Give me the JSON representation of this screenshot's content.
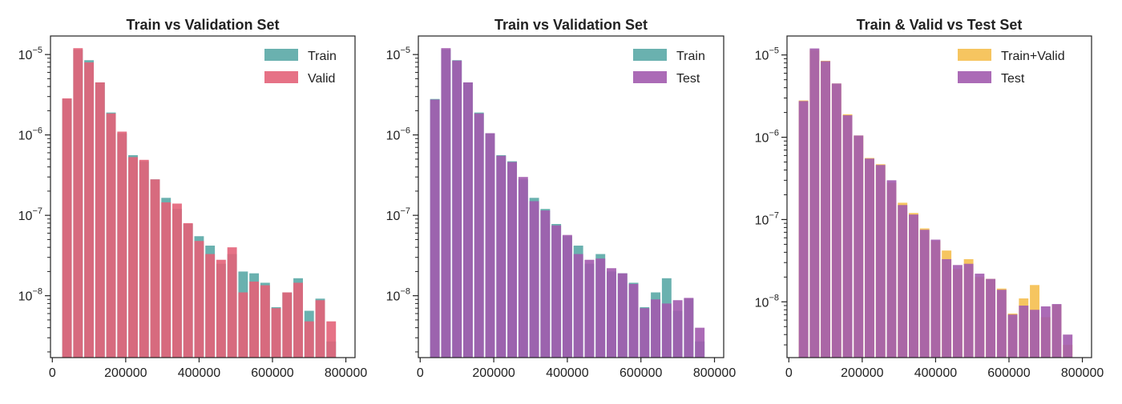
{
  "chart_data": [
    {
      "type": "bar",
      "title": "Train vs Validation Set",
      "yscale": "log",
      "xlim": [
        -5000,
        825000
      ],
      "ylim": [
        1.7e-09,
        1.7e-05
      ],
      "xticks": [
        0,
        200000,
        400000,
        600000,
        800000
      ],
      "xtick_labels": [
        "0",
        "200000",
        "400000",
        "600000",
        "800000"
      ],
      "yticks": [
        1e-08,
        1e-07,
        1e-06,
        1e-05
      ],
      "ytick_labels": [
        {
          "base": "10",
          "exp": "−8"
        },
        {
          "base": "10",
          "exp": "−7"
        },
        {
          "base": "10",
          "exp": "−6"
        },
        {
          "base": "10",
          "exp": "−5"
        }
      ],
      "bin_width": 26000,
      "x": [
        40000,
        70000,
        100000,
        130000,
        160000,
        190000,
        220000,
        250000,
        280000,
        310000,
        340000,
        370000,
        400000,
        430000,
        460000,
        490000,
        520000,
        550000,
        580000,
        610000,
        640000,
        670000,
        700000,
        730000,
        760000,
        790000
      ],
      "legend_position": "upper right",
      "series": [
        {
          "name": "Train",
          "color": "#5aa8a6",
          "values": [
            2.8e-06,
            1.15e-05,
            8.5e-06,
            4.5e-06,
            1.9e-06,
            1.05e-06,
            5.6e-07,
            4.7e-07,
            2.8e-07,
            1.65e-07,
            1.2e-07,
            7.8e-08,
            5.5e-08,
            4.2e-08,
            2.5e-08,
            3.3e-08,
            2e-08,
            1.9e-08,
            1.45e-08,
            7.2e-09,
            1.1e-08,
            1.65e-08,
            6.5e-09,
            9.2e-09,
            2.7e-09,
            0
          ]
        },
        {
          "name": "Valid",
          "color": "#e36379",
          "values": [
            2.85e-06,
            1.2e-05,
            8e-06,
            4.5e-06,
            1.85e-06,
            1.1e-06,
            5.3e-07,
            4.9e-07,
            2.8e-07,
            1.45e-07,
            1.4e-07,
            8e-08,
            4.8e-08,
            3.3e-08,
            2.8e-08,
            4e-08,
            1.1e-08,
            1.5e-08,
            1.35e-08,
            7e-09,
            1.1e-08,
            1.45e-08,
            4.8e-09,
            8.8e-09,
            4.8e-09,
            0
          ]
        }
      ]
    },
    {
      "type": "bar",
      "title": "Train vs Validation Set",
      "yscale": "log",
      "xlim": [
        -5000,
        825000
      ],
      "ylim": [
        1.7e-09,
        1.7e-05
      ],
      "xticks": [
        0,
        200000,
        400000,
        600000,
        800000
      ],
      "xtick_labels": [
        "0",
        "200000",
        "400000",
        "600000",
        "800000"
      ],
      "yticks": [
        1e-08,
        1e-07,
        1e-06,
        1e-05
      ],
      "ytick_labels": [
        {
          "base": "10",
          "exp": "−8"
        },
        {
          "base": "10",
          "exp": "−7"
        },
        {
          "base": "10",
          "exp": "−6"
        },
        {
          "base": "10",
          "exp": "−5"
        }
      ],
      "bin_width": 26000,
      "x": [
        40000,
        70000,
        100000,
        130000,
        160000,
        190000,
        220000,
        250000,
        280000,
        310000,
        340000,
        370000,
        400000,
        430000,
        460000,
        490000,
        520000,
        550000,
        580000,
        610000,
        640000,
        670000,
        700000,
        730000,
        760000,
        790000
      ],
      "legend_position": "upper right",
      "series": [
        {
          "name": "Train",
          "color": "#5aa8a6",
          "values": [
            2.8e-06,
            1.15e-05,
            8.5e-06,
            4.5e-06,
            1.9e-06,
            1.05e-06,
            5.6e-07,
            4.7e-07,
            2.8e-07,
            1.65e-07,
            1.2e-07,
            7.8e-08,
            5.5e-08,
            4.2e-08,
            2.5e-08,
            3.3e-08,
            2e-08,
            1.9e-08,
            1.45e-08,
            7.2e-09,
            1.1e-08,
            1.65e-08,
            6.5e-09,
            9.2e-09,
            2.7e-09,
            0
          ]
        },
        {
          "name": "Test",
          "color": "#a25bae",
          "values": [
            2.75e-06,
            1.2e-05,
            8.4e-06,
            4.5e-06,
            1.85e-06,
            1.05e-06,
            5.5e-07,
            4.6e-07,
            3e-07,
            1.5e-07,
            1.15e-07,
            7.5e-08,
            5.7e-08,
            3.3e-08,
            2.8e-08,
            2.9e-08,
            2.2e-08,
            1.9e-08,
            1.4e-08,
            7e-09,
            9e-09,
            8e-09,
            8.8e-09,
            9.4e-09,
            4e-09,
            0
          ]
        }
      ]
    },
    {
      "type": "bar",
      "title": "Train & Valid vs Test Set",
      "yscale": "log",
      "xlim": [
        -5000,
        825000
      ],
      "ylim": [
        2.1e-09,
        1.7e-05
      ],
      "xticks": [
        0,
        200000,
        400000,
        600000,
        800000
      ],
      "xtick_labels": [
        "0",
        "200000",
        "400000",
        "600000",
        "800000"
      ],
      "yticks": [
        1e-08,
        1e-07,
        1e-06,
        1e-05
      ],
      "ytick_labels": [
        {
          "base": "10",
          "exp": "−8"
        },
        {
          "base": "10",
          "exp": "−7"
        },
        {
          "base": "10",
          "exp": "−6"
        },
        {
          "base": "10",
          "exp": "−5"
        }
      ],
      "bin_width": 26000,
      "x": [
        40000,
        70000,
        100000,
        130000,
        160000,
        190000,
        220000,
        250000,
        280000,
        310000,
        340000,
        370000,
        400000,
        430000,
        460000,
        490000,
        520000,
        550000,
        580000,
        610000,
        640000,
        670000,
        700000,
        730000,
        760000,
        790000
      ],
      "legend_position": "upper right",
      "series": [
        {
          "name": "Train+Valid",
          "color": "#f5bf4f",
          "values": [
            2.8e-06,
            1.15e-05,
            8.5e-06,
            4.5e-06,
            1.9e-06,
            1.05e-06,
            5.6e-07,
            4.7e-07,
            2.8e-07,
            1.6e-07,
            1.2e-07,
            7.8e-08,
            5.5e-08,
            4.2e-08,
            2.5e-08,
            3.3e-08,
            2e-08,
            1.9e-08,
            1.45e-08,
            7.2e-09,
            1.1e-08,
            1.6e-08,
            6.5e-09,
            9.2e-09,
            3e-09,
            0
          ]
        },
        {
          "name": "Test",
          "color": "#a25bae",
          "values": [
            2.75e-06,
            1.2e-05,
            8.4e-06,
            4.5e-06,
            1.85e-06,
            1.05e-06,
            5.5e-07,
            4.6e-07,
            3e-07,
            1.5e-07,
            1.15e-07,
            7.5e-08,
            5.7e-08,
            3.3e-08,
            2.8e-08,
            2.9e-08,
            2.2e-08,
            1.9e-08,
            1.4e-08,
            7e-09,
            9e-09,
            8e-09,
            8.8e-09,
            9.4e-09,
            4e-09,
            0
          ]
        }
      ]
    }
  ]
}
